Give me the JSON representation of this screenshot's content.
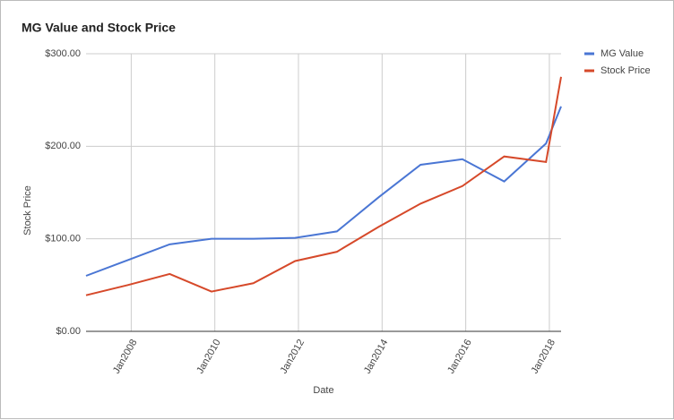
{
  "chart_data": {
    "type": "line",
    "title": "MG Value and Stock Price",
    "x_label": "Date",
    "y_label": "Stock Price",
    "x": [
      2006.92,
      2007.92,
      2008.92,
      2009.92,
      2010.92,
      2011.92,
      2012.92,
      2013.92,
      2014.92,
      2015.92,
      2016.92,
      2017.92,
      2018.28
    ],
    "series": [
      {
        "name": "MG Value",
        "color": "#4a76d4",
        "values": [
          60,
          77,
          94,
          100,
          100,
          101,
          108,
          145,
          180,
          186,
          162,
          203,
          243
        ]
      },
      {
        "name": "Stock Price",
        "color": "#d6492a",
        "values": [
          39,
          50,
          62,
          43,
          52,
          76,
          86,
          113,
          138,
          157,
          189,
          183,
          275
        ]
      }
    ],
    "xlim": [
      2006.92,
      2018.28
    ],
    "xticks": [
      {
        "value": 2008,
        "label": "Jan2008"
      },
      {
        "value": 2010,
        "label": "Jan2010"
      },
      {
        "value": 2012,
        "label": "Jan2012"
      },
      {
        "value": 2014,
        "label": "Jan2014"
      },
      {
        "value": 2016,
        "label": "Jan2016"
      },
      {
        "value": 2018,
        "label": "Jan2018"
      }
    ],
    "ylim": [
      0,
      300
    ],
    "yticks": [
      {
        "value": 0,
        "label": "$0.00"
      },
      {
        "value": 100,
        "label": "$100.00"
      },
      {
        "value": 200,
        "label": "$200.00"
      },
      {
        "value": 300,
        "label": "$300.00"
      }
    ],
    "grid": true,
    "legend": "right"
  }
}
